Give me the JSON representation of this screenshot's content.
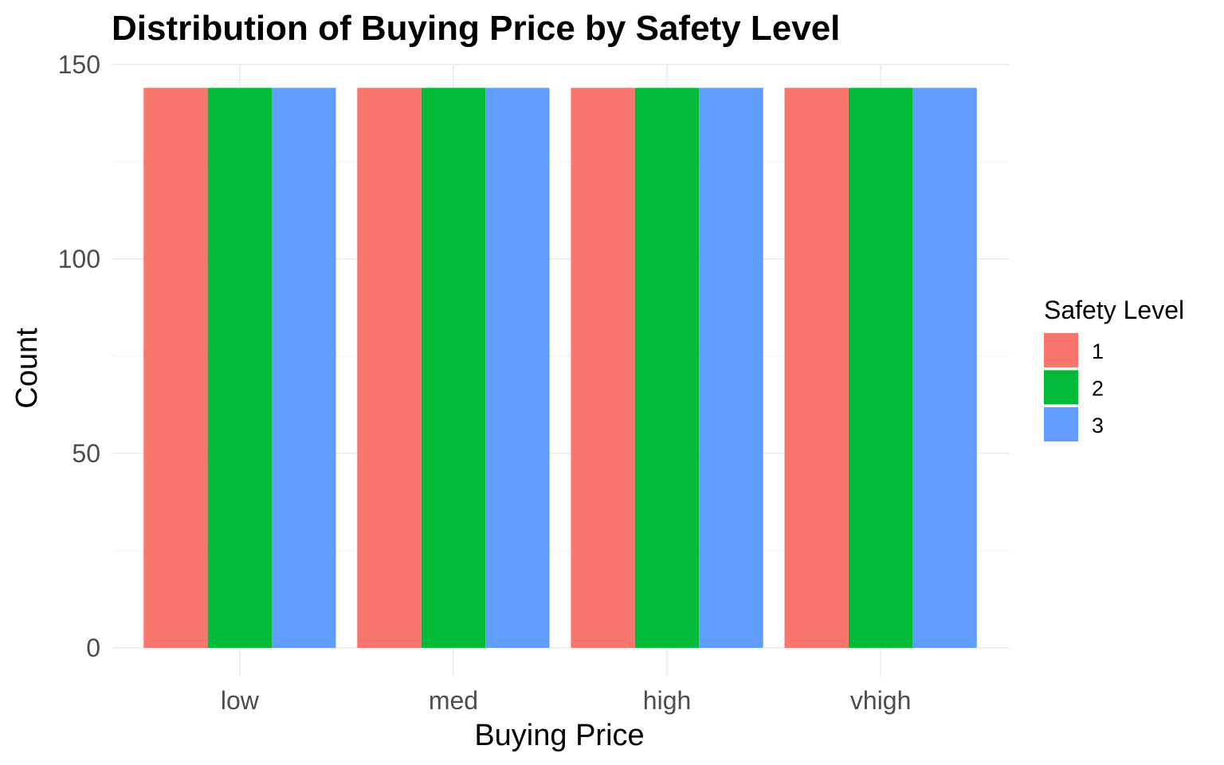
{
  "chart_data": {
    "type": "bar",
    "title": "Distribution of Buying Price by Safety Level",
    "xlabel": "Buying Price",
    "ylabel": "Count",
    "categories": [
      "low",
      "med",
      "high",
      "vhigh"
    ],
    "series": [
      {
        "name": "1",
        "color": "#F8766D",
        "values": [
          144,
          144,
          144,
          144
        ]
      },
      {
        "name": "2",
        "color": "#00BA38",
        "values": [
          144,
          144,
          144,
          144
        ]
      },
      {
        "name": "3",
        "color": "#619CFF",
        "values": [
          144,
          144,
          144,
          144
        ]
      }
    ],
    "ylim": [
      0,
      150
    ],
    "yticks": [
      0,
      50,
      100,
      150
    ],
    "grid": true,
    "legend": {
      "title": "Safety Level",
      "placement": "right"
    }
  }
}
